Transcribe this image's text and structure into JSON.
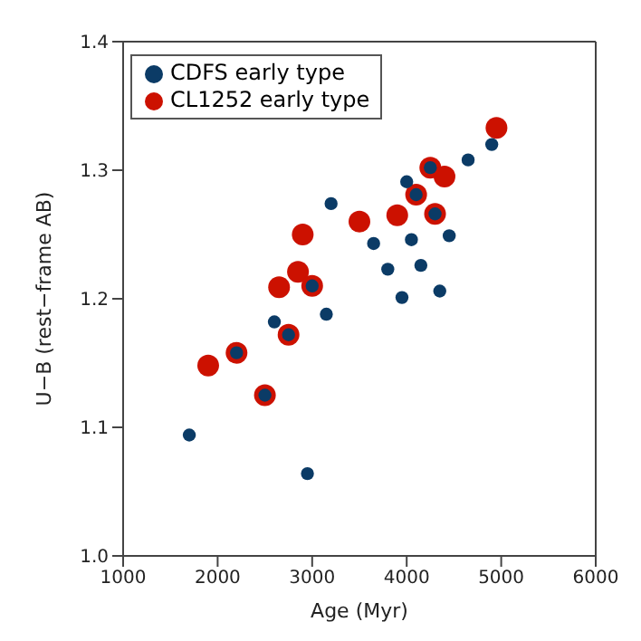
{
  "chart_data": {
    "type": "scatter",
    "xlabel": "Age (Myr)",
    "ylabel": "U−B (rest−frame AB)",
    "xlim": [
      1000,
      6000
    ],
    "xticks": [
      1000,
      2000,
      3000,
      4000,
      5000,
      6000
    ],
    "ylim": [
      1.0,
      1.4
    ],
    "yticks": [
      {
        "value": 1.0,
        "label": "1.0"
      },
      1.1,
      1.2,
      1.3,
      {
        "value": 1.4,
        "label": "1.4"
      }
    ],
    "legend": "top left",
    "marker": "circle",
    "series": [
      {
        "name": "CDFS early type",
        "color": "#0b3b66",
        "x": [
          1700,
          2600,
          2950,
          3150,
          3200,
          3650,
          3800,
          3950,
          4000,
          4050,
          4150,
          4350,
          4450,
          4650,
          4900,
          2200,
          2500,
          2750,
          3000,
          4100,
          4250,
          4300
        ],
        "values": [
          1.094,
          1.182,
          1.064,
          1.188,
          1.274,
          1.243,
          1.223,
          1.201,
          1.291,
          1.246,
          1.226,
          1.206,
          1.249,
          1.308,
          1.32,
          1.158,
          1.125,
          1.172,
          1.21,
          1.281,
          1.302,
          1.266
        ]
      },
      {
        "name": "CL1252 early type",
        "color": "#cc1100",
        "x": [
          1900,
          2200,
          2500,
          2650,
          2750,
          2850,
          2900,
          3000,
          3500,
          3900,
          4100,
          4250,
          4300,
          4400,
          4950
        ],
        "values": [
          1.148,
          1.158,
          1.125,
          1.209,
          1.172,
          1.221,
          1.25,
          1.21,
          1.26,
          1.265,
          1.281,
          1.302,
          1.266,
          1.295,
          1.333
        ]
      }
    ]
  }
}
